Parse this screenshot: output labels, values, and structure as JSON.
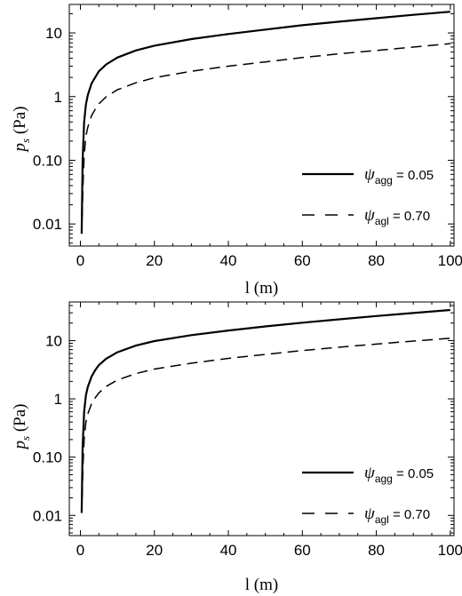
{
  "chart_data": [
    {
      "type": "line",
      "xlabel": "l (m)",
      "ylabel_main": "p",
      "ylabel_sub": "s",
      "ylabel_unit": "(Pa)",
      "xlim": [
        -3,
        101
      ],
      "ylim": [
        0.0045,
        28
      ],
      "yscale": "log",
      "grid": false,
      "legend_position": "bottom-right",
      "xticks": [
        0,
        20,
        40,
        60,
        80,
        100
      ],
      "yticks": [
        {
          "value": 0.01,
          "label": "0.01"
        },
        {
          "value": 0.1,
          "label": "0.10"
        },
        {
          "value": 1,
          "label": "1"
        },
        {
          "value": 10,
          "label": "10"
        }
      ],
      "series": [
        {
          "name": "ψagg = 0.05",
          "legend_symbol": "ψ",
          "legend_sub": "agg",
          "legend_value": "= 0.05",
          "style": "solid",
          "x": [
            0.35,
            0.6,
            1,
            1.5,
            2,
            3,
            4,
            5,
            7,
            10,
            15,
            20,
            30,
            40,
            50,
            60,
            70,
            80,
            90,
            100
          ],
          "y": [
            0.007,
            0.1,
            0.4,
            0.75,
            1.05,
            1.6,
            2.0,
            2.5,
            3.2,
            4.1,
            5.3,
            6.3,
            8.0,
            9.6,
            11.3,
            13.2,
            15.0,
            17.0,
            19.2,
            21.5
          ]
        },
        {
          "name": "ψagl = 0.70",
          "legend_symbol": "ψ",
          "legend_sub": "agl",
          "legend_value": "= 0.70",
          "style": "dashed",
          "x": [
            0.45,
            0.7,
            1,
            1.5,
            2,
            3,
            4,
            5,
            7,
            10,
            15,
            20,
            30,
            40,
            50,
            60,
            70,
            80,
            90,
            100
          ],
          "y": [
            0.012,
            0.04,
            0.12,
            0.24,
            0.33,
            0.5,
            0.63,
            0.77,
            1.0,
            1.28,
            1.65,
            1.98,
            2.5,
            3.0,
            3.5,
            4.1,
            4.7,
            5.3,
            6.0,
            6.8
          ]
        }
      ]
    },
    {
      "type": "line",
      "xlabel": "l (m)",
      "ylabel_main": "p",
      "ylabel_sub": "s",
      "ylabel_unit": "(Pa)",
      "xlim": [
        -3,
        101
      ],
      "ylim": [
        0.0045,
        46
      ],
      "yscale": "log",
      "grid": false,
      "legend_position": "bottom-right",
      "xticks": [
        0,
        20,
        40,
        60,
        80,
        100
      ],
      "yticks": [
        {
          "value": 0.01,
          "label": "0.01"
        },
        {
          "value": 0.1,
          "label": "0.10"
        },
        {
          "value": 1,
          "label": "1"
        },
        {
          "value": 10,
          "label": "10"
        }
      ],
      "series": [
        {
          "name": "ψagg = 0.05",
          "legend_symbol": "ψ",
          "legend_sub": "agg",
          "legend_value": "= 0.05",
          "style": "solid",
          "x": [
            0.35,
            0.6,
            1,
            1.5,
            2,
            3,
            4,
            5,
            7,
            10,
            15,
            20,
            30,
            40,
            50,
            60,
            70,
            80,
            90,
            100
          ],
          "y": [
            0.011,
            0.15,
            0.6,
            1.15,
            1.6,
            2.4,
            3.1,
            3.8,
            4.9,
            6.3,
            8.2,
            9.8,
            12.4,
            14.9,
            17.5,
            20.3,
            23.2,
            26.4,
            29.8,
            33.5
          ]
        },
        {
          "name": "ψagl = 0.70",
          "legend_symbol": "ψ",
          "legend_sub": "agl",
          "legend_value": "= 0.70",
          "style": "dashed",
          "x": [
            0.45,
            0.7,
            1,
            1.5,
            2,
            3,
            4,
            5,
            7,
            10,
            15,
            20,
            30,
            40,
            50,
            60,
            70,
            80,
            90,
            100
          ],
          "y": [
            0.02,
            0.07,
            0.2,
            0.4,
            0.55,
            0.82,
            1.04,
            1.27,
            1.64,
            2.1,
            2.72,
            3.25,
            4.1,
            4.95,
            5.8,
            6.75,
            7.7,
            8.7,
            9.8,
            11.0
          ]
        }
      ]
    }
  ]
}
